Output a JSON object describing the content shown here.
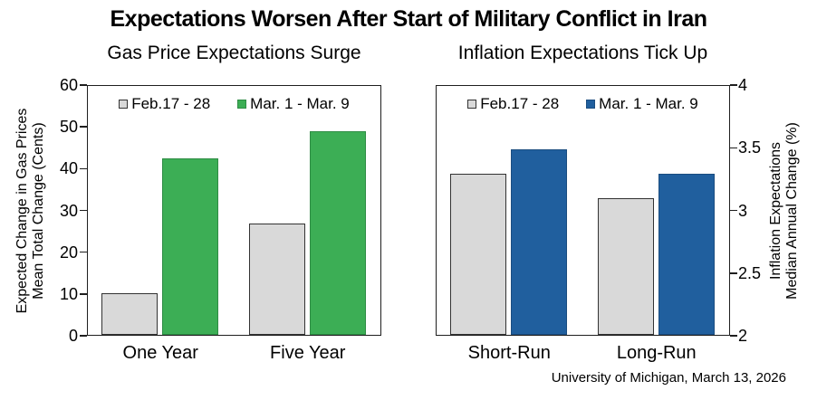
{
  "page": {
    "title": "Expectations Worsen After Start of Military Conflict in Iran",
    "source_note": "University of Michigan, March 13, 2026"
  },
  "colors": {
    "gray_fill": "#d9d9d9",
    "gray_border": "#333333",
    "green_fill": "#3cae55",
    "green_border": "#2e8c44",
    "blue_fill": "#205f9e",
    "blue_border": "#1b4d80",
    "axis": "#1f1f1f"
  },
  "chart_data": [
    {
      "type": "bar",
      "title": "Gas Price Expectations Surge",
      "categories": [
        "One Year",
        "Five Year"
      ],
      "series": [
        {
          "name": "Feb.17 - 28",
          "values": [
            10,
            27
          ],
          "fill": "#d9d9d9",
          "border": "#333333"
        },
        {
          "name": "Mar. 1 - Mar. 9",
          "values": [
            42.6,
            49.2
          ],
          "fill": "#3cae55",
          "border": "#2e8c44"
        }
      ],
      "ylabel_lines": [
        "Expected Change in Gas Prices",
        "Mean Total Change (Cents)"
      ],
      "ylim": [
        0,
        60
      ],
      "yticks": [
        0,
        10,
        20,
        30,
        40,
        50,
        60
      ],
      "ytick_labels": [
        "0",
        "10",
        "20",
        "30",
        "40",
        "50",
        "60"
      ],
      "axis_side": "left",
      "legend_position": "top-center",
      "grid": "off"
    },
    {
      "type": "bar",
      "title": "Inflation Expectations Tick Up",
      "categories": [
        "Short-Run",
        "Long-Run"
      ],
      "series": [
        {
          "name": "Feb.17 - 28",
          "values": [
            3.3,
            3.1
          ],
          "fill": "#d9d9d9",
          "border": "#333333"
        },
        {
          "name": "Mar. 1 - Mar. 9",
          "values": [
            3.5,
            3.3
          ],
          "fill": "#205f9e",
          "border": "#1b4d80"
        }
      ],
      "ylabel_lines": [
        "Inflation Expectations",
        "Median Annual Change (%)"
      ],
      "ylim": [
        2,
        4
      ],
      "yticks": [
        2,
        2.5,
        3,
        3.5,
        4
      ],
      "ytick_labels": [
        "2",
        "2.5",
        "3",
        "3.5",
        "4"
      ],
      "axis_side": "right",
      "legend_position": "top-center",
      "grid": "off"
    }
  ]
}
